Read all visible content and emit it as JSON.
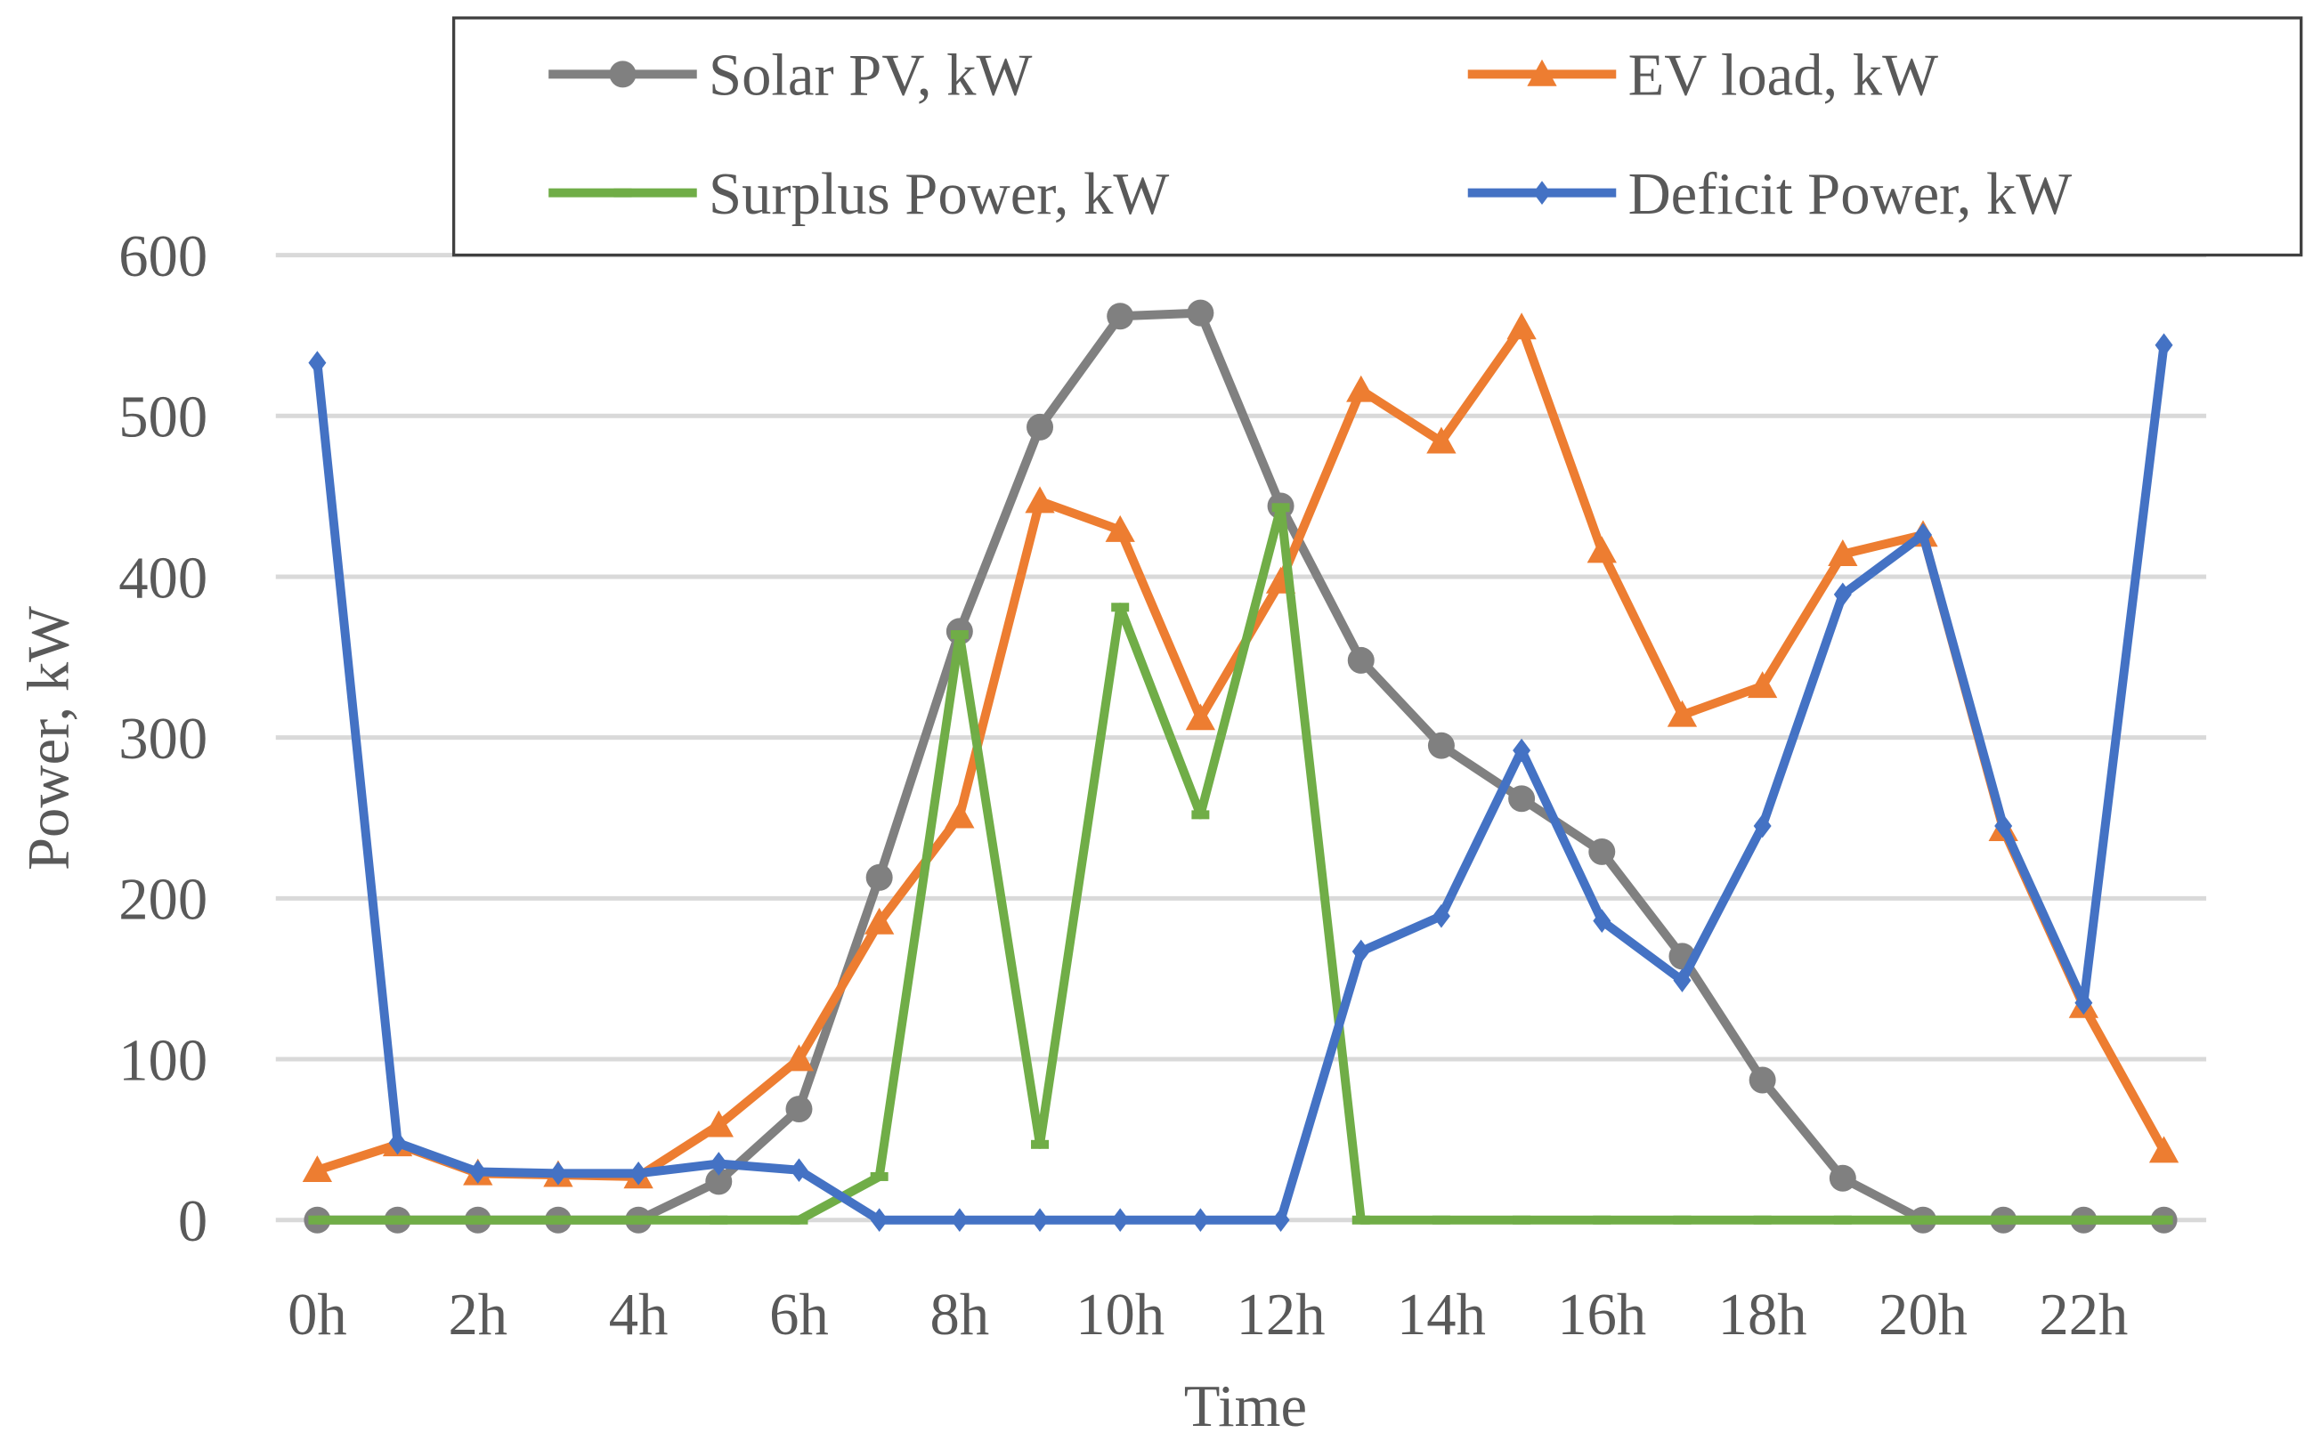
{
  "chart_data": {
    "type": "line",
    "title": "",
    "xlabel": "Time",
    "ylabel": "Power, kW",
    "ylim": [
      0,
      600
    ],
    "yticks": [
      0,
      100,
      200,
      300,
      400,
      500,
      600
    ],
    "x": [
      "0h",
      "1h",
      "2h",
      "3h",
      "4h",
      "5h",
      "6h",
      "7h",
      "8h",
      "9h",
      "10h",
      "11h",
      "12h",
      "13h",
      "14h",
      "15h",
      "16h",
      "17h",
      "18h",
      "19h",
      "20h",
      "21h",
      "22h",
      "23h"
    ],
    "xtick_labels": [
      "0h",
      "2h",
      "4h",
      "6h",
      "8h",
      "10h",
      "12h",
      "14h",
      "16h",
      "18h",
      "20h",
      "22h"
    ],
    "grid": true,
    "legend_position": "top",
    "series": [
      {
        "name": "Solar PV, kW",
        "color": "#808080",
        "marker": "circle",
        "values": [
          0,
          0,
          0,
          0,
          0,
          24,
          69,
          213,
          366,
          493,
          562,
          564,
          444,
          348,
          295,
          262,
          229,
          164,
          87,
          26,
          0,
          0,
          0,
          0
        ]
      },
      {
        "name": "EV load, kW",
        "color": "#ED7D31",
        "marker": "triangle",
        "values": [
          31,
          47,
          29,
          28,
          27,
          59,
          100,
          185,
          251,
          447,
          429,
          312,
          397,
          516,
          484,
          555,
          416,
          314,
          332,
          414,
          426,
          243,
          133,
          43
        ]
      },
      {
        "name": "Surplus Power, kW",
        "color": "#70AD47",
        "marker": "dash",
        "values": [
          0,
          0,
          0,
          0,
          0,
          0,
          0,
          27,
          364,
          47,
          381,
          252,
          443,
          0,
          0,
          0,
          0,
          0,
          0,
          0,
          0,
          0,
          0,
          0
        ]
      },
      {
        "name": "Deficit Power, kW",
        "color": "#4472C4",
        "marker": "diamond",
        "values": [
          533,
          48,
          30,
          29,
          29,
          35,
          31,
          0,
          0,
          0,
          0,
          0,
          0,
          167,
          189,
          292,
          186,
          149,
          245,
          389,
          426,
          245,
          135,
          544
        ]
      }
    ]
  }
}
